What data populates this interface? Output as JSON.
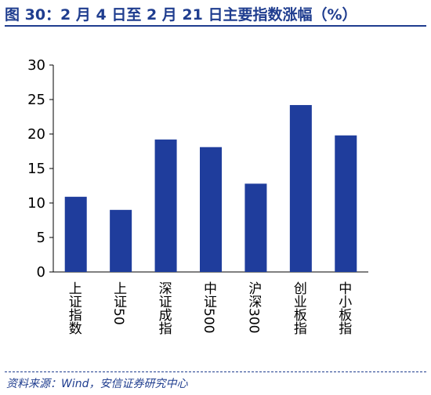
{
  "title": "图 30：2 月 4 日至 2 月 21 日主要指数涨幅（%）",
  "source": "资料来源：Wind，安信证券研究中心",
  "colors": {
    "bar": "#1f3d9c",
    "title": "#1f3d8f",
    "axis": "#000000"
  },
  "chart_data": {
    "type": "bar",
    "categories": [
      "上证指数",
      "上证50",
      "深证成指",
      "中证500",
      "沪深300",
      "创业板指",
      "中小板指"
    ],
    "values": [
      10.9,
      9.0,
      19.2,
      18.1,
      12.8,
      24.2,
      19.8
    ],
    "ylim": [
      0,
      30
    ],
    "yticks": [
      0,
      5,
      10,
      15,
      20,
      25,
      30
    ],
    "grid": false,
    "legend": "none"
  }
}
